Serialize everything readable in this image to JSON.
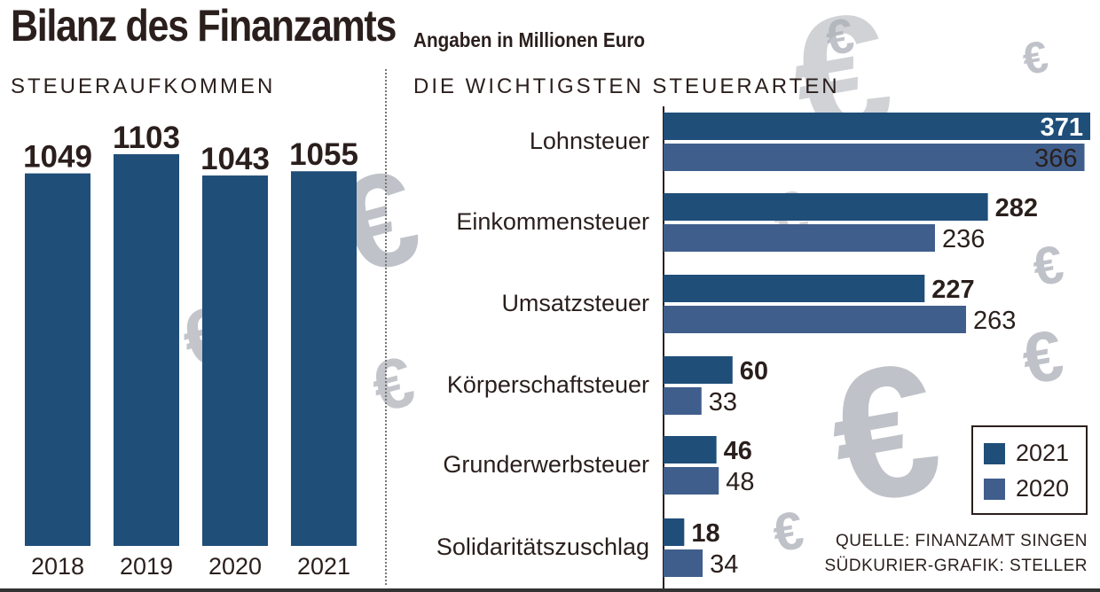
{
  "header": {
    "title": "Bilanz des Finanzamts",
    "subtitle": "Angaben in Millionen Euro"
  },
  "colors": {
    "bar_2021": "#1f4e79",
    "bar_2020": "#405e8c",
    "text": "#2a1f1c",
    "watermark_euro": "#a9adb5"
  },
  "chart_data": [
    {
      "type": "bar",
      "title": "STEUERAUFKOMMEN",
      "categories": [
        "2018",
        "2019",
        "2020",
        "2021"
      ],
      "values": [
        1049,
        1103,
        1043,
        1055
      ],
      "xlabel": "",
      "ylabel": "",
      "grid": false
    },
    {
      "type": "bar",
      "orientation": "horizontal",
      "title": "DIE WICHTIGSTEN STEUERARTEN",
      "categories": [
        "Lohnsteuer",
        "Einkommensteuer",
        "Umsatzsteuer",
        "Körperschaftsteuer",
        "Grunderwerbsteuer",
        "Solidaritätszuschlag"
      ],
      "series": [
        {
          "name": "2021",
          "values": [
            371,
            282,
            227,
            60,
            46,
            18
          ]
        },
        {
          "name": "2020",
          "values": [
            366,
            236,
            263,
            33,
            48,
            34
          ]
        }
      ],
      "legend": "bottom-right",
      "grid": false
    }
  ],
  "source": {
    "line1": "QUELLE: FINANZAMT SINGEN",
    "line2": "SÜDKURIER-GRAFIK: STELLER"
  },
  "decoration": {
    "icon": "euro-icon",
    "glyph": "€"
  }
}
